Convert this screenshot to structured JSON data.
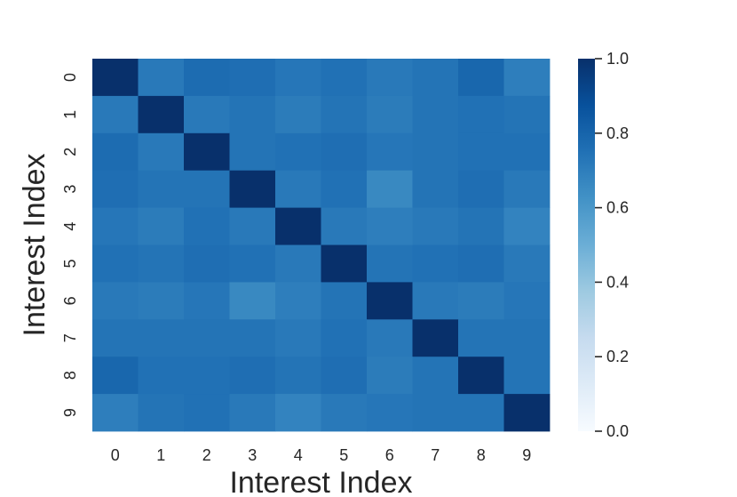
{
  "chart_data": {
    "type": "heatmap",
    "title": "",
    "xlabel": "Interest Index",
    "ylabel": "Interest Index",
    "x_categories": [
      "0",
      "1",
      "2",
      "3",
      "4",
      "5",
      "6",
      "7",
      "8",
      "9"
    ],
    "y_categories": [
      "0",
      "1",
      "2",
      "3",
      "4",
      "5",
      "6",
      "7",
      "8",
      "9"
    ],
    "values": [
      [
        1.0,
        0.72,
        0.77,
        0.76,
        0.73,
        0.75,
        0.72,
        0.74,
        0.79,
        0.7
      ],
      [
        0.72,
        1.0,
        0.72,
        0.74,
        0.71,
        0.74,
        0.71,
        0.74,
        0.75,
        0.74
      ],
      [
        0.77,
        0.72,
        1.0,
        0.74,
        0.75,
        0.76,
        0.73,
        0.74,
        0.75,
        0.75
      ],
      [
        0.76,
        0.74,
        0.74,
        1.0,
        0.72,
        0.75,
        0.66,
        0.74,
        0.76,
        0.72
      ],
      [
        0.73,
        0.71,
        0.75,
        0.72,
        1.0,
        0.72,
        0.7,
        0.72,
        0.74,
        0.68
      ],
      [
        0.75,
        0.74,
        0.76,
        0.75,
        0.72,
        1.0,
        0.74,
        0.75,
        0.76,
        0.72
      ],
      [
        0.72,
        0.71,
        0.73,
        0.66,
        0.7,
        0.74,
        1.0,
        0.72,
        0.71,
        0.73
      ],
      [
        0.74,
        0.74,
        0.74,
        0.74,
        0.72,
        0.75,
        0.72,
        1.0,
        0.74,
        0.74
      ],
      [
        0.79,
        0.75,
        0.75,
        0.76,
        0.74,
        0.76,
        0.71,
        0.74,
        1.0,
        0.74
      ],
      [
        0.7,
        0.74,
        0.75,
        0.72,
        0.68,
        0.72,
        0.73,
        0.74,
        0.74,
        1.0
      ]
    ],
    "colorbar": {
      "range": [
        0.0,
        1.0
      ],
      "ticks": [
        "0.0",
        "0.2",
        "0.4",
        "0.6",
        "0.8",
        "1.0"
      ],
      "colormap": [
        "#f7fbff",
        "#deebf7",
        "#c6dbef",
        "#9ecae1",
        "#6baed6",
        "#4292c6",
        "#2171b5",
        "#08519c",
        "#08306b"
      ]
    },
    "grid": false
  }
}
